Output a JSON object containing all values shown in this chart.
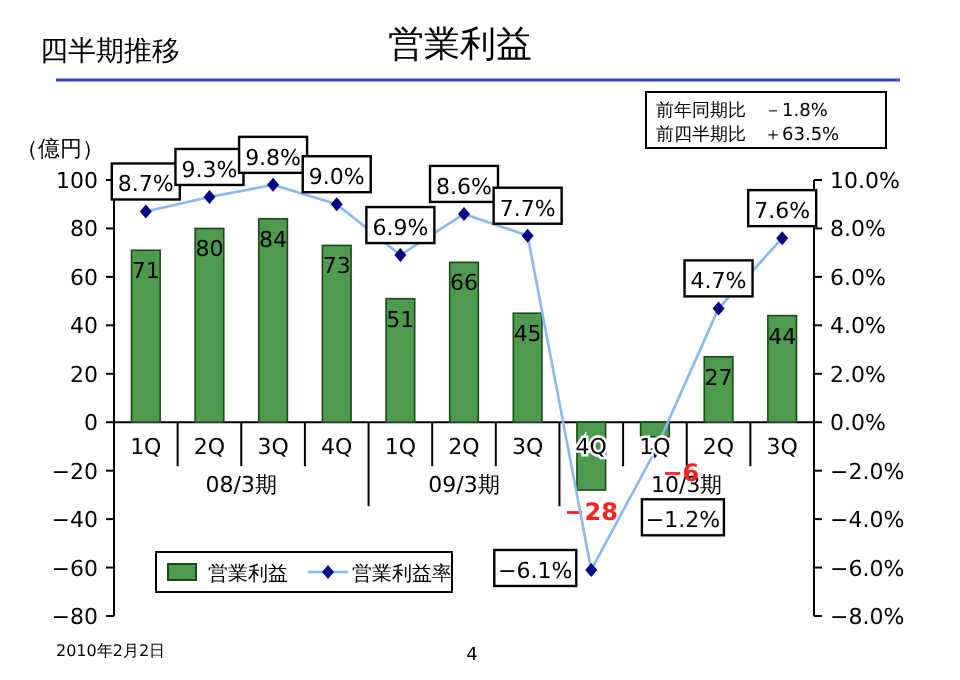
{
  "chart_data": {
    "type": "bar",
    "title": "営業利益",
    "subtitle": "四半期推移",
    "ylabel": "（億円）",
    "categories": [
      "1Q",
      "2Q",
      "3Q",
      "4Q",
      "1Q",
      "2Q",
      "3Q",
      "4Q",
      "1Q",
      "2Q",
      "3Q"
    ],
    "series": [
      {
        "name": "営業利益",
        "color": "#4e9a4e",
        "values": [
          71,
          80,
          84,
          73,
          51,
          66,
          45,
          -28,
          -6,
          27,
          44
        ]
      },
      {
        "name": "営業利益率",
        "type": "line",
        "axis": "y2",
        "color": "#8ab8f0",
        "marker": "diamond",
        "values": [
          8.7,
          9.3,
          9.8,
          9.0,
          6.9,
          8.6,
          7.7,
          -6.1,
          -1.2,
          4.7,
          7.6
        ],
        "value_labels": [
          "8.7%",
          "9.3%",
          "9.8%",
          "9.0%",
          "6.9%",
          "8.6%",
          "7.7%",
          "−6.1%",
          "−1.2%",
          "4.7%",
          "7.6%"
        ]
      }
    ],
    "data_labels": true,
    "ylim": [
      -80,
      100
    ],
    "yticks": [
      -80,
      -60,
      -40,
      -20,
      0,
      20,
      40,
      60,
      80,
      100
    ],
    "y2lim": [
      -8,
      10
    ],
    "y2ticks": [
      {
        "value": -8,
        "label": "−8.0%"
      },
      {
        "value": -6,
        "label": "−6.0%"
      },
      {
        "value": -4,
        "label": "−4.0%"
      },
      {
        "value": -2,
        "label": "−2.0%"
      },
      {
        "value": 0,
        "label": "0.0%"
      },
      {
        "value": 2,
        "label": "2.0%"
      },
      {
        "value": 4,
        "label": "4.0%"
      },
      {
        "value": 6,
        "label": "6.0%"
      },
      {
        "value": 8,
        "label": "8.0%"
      },
      {
        "value": 10,
        "label": "10.0%"
      }
    ],
    "legend": "bottom left",
    "annotations": [
      "08/3期",
      "09/3期",
      "10/3期",
      "前年同期比　－1.8%",
      "前四半期比　＋63.5%",
      "2010年2月2日",
      "4"
    ]
  }
}
